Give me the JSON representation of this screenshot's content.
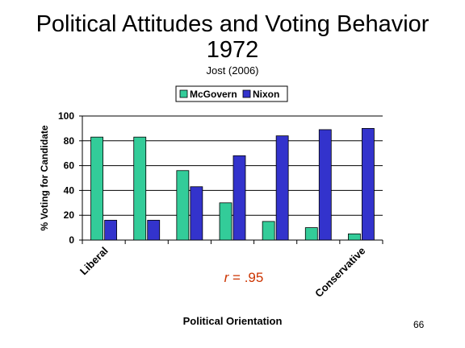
{
  "slide": {
    "title_line1": "Political Attitudes and Voting Behavior",
    "title_line2": "1972",
    "subtitle": "Jost (2006)",
    "page_number": "66"
  },
  "chart_data": {
    "type": "bar",
    "categories": [
      "Liberal",
      "",
      "",
      "",
      "",
      "",
      "Conservative"
    ],
    "series": [
      {
        "name": "McGovern",
        "values": [
          83,
          83,
          56,
          30,
          15,
          10,
          5
        ],
        "color": "#33CC99"
      },
      {
        "name": "Nixon",
        "values": [
          16,
          16,
          43,
          68,
          84,
          89,
          90
        ],
        "color": "#3333CC"
      }
    ],
    "xlabel": "Political Orientation",
    "ylabel": "% Voting for Candidate",
    "ylim": [
      0,
      100
    ],
    "yticks": [
      0,
      20,
      40,
      60,
      80,
      100
    ],
    "grid": true,
    "legend_position": "top",
    "annotation": {
      "italic": "r",
      "text": " = .95",
      "color": "#CC3300"
    }
  }
}
